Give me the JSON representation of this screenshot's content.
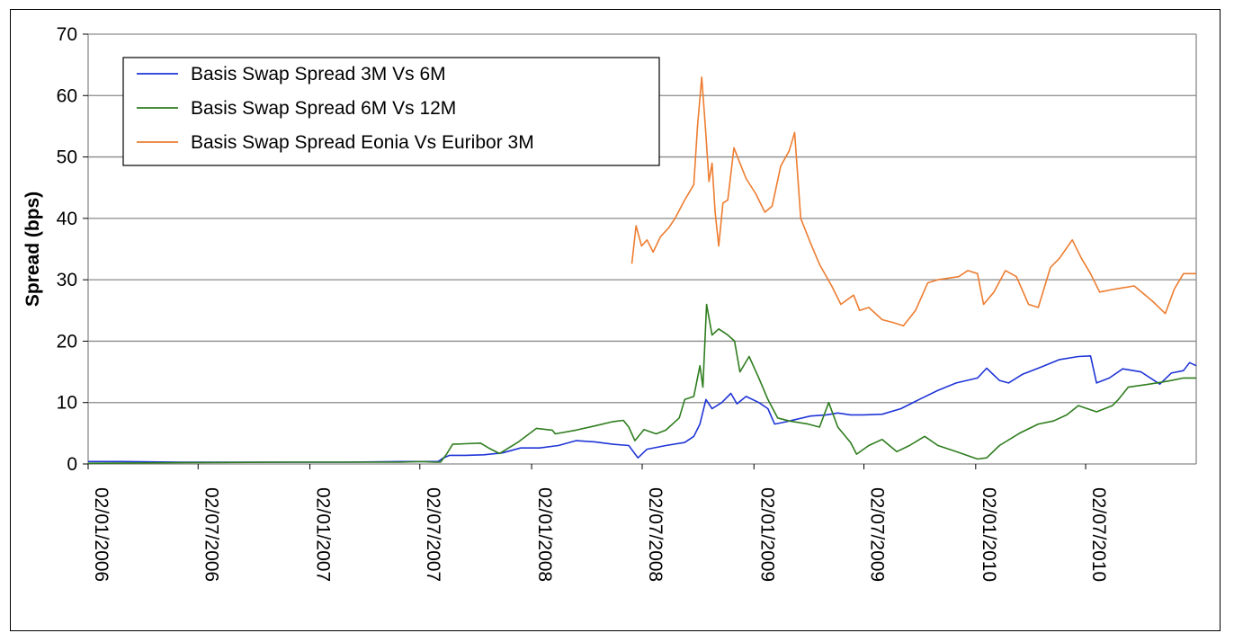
{
  "chart_data": {
    "type": "line",
    "title": "",
    "xlabel": "",
    "ylabel": "Spread (bps)",
    "ylim": [
      0,
      70
    ],
    "yticks": [
      0,
      10,
      20,
      30,
      40,
      50,
      60,
      70
    ],
    "xlim": [
      "2006-01-02",
      "2010-12-31"
    ],
    "xticks": [
      "02/01/2006",
      "02/07/2006",
      "02/01/2007",
      "02/07/2007",
      "02/01/2008",
      "02/07/2008",
      "02/01/2009",
      "02/07/2009",
      "02/01/2010",
      "02/07/2010"
    ],
    "grid": "horizontal",
    "legend_position": "top-left",
    "series": [
      {
        "name": "Basis Swap Spread 3M Vs 6M",
        "color": "#1f35d6",
        "points": [
          [
            "2006-01-02",
            0.4
          ],
          [
            "2006-03-01",
            0.4
          ],
          [
            "2006-06-01",
            0.3
          ],
          [
            "2006-09-01",
            0.3
          ],
          [
            "2006-12-01",
            0.3
          ],
          [
            "2007-03-01",
            0.3
          ],
          [
            "2007-06-01",
            0.4
          ],
          [
            "2007-08-01",
            0.4
          ],
          [
            "2007-08-10",
            1.0
          ],
          [
            "2007-08-20",
            1.4
          ],
          [
            "2007-09-15",
            1.4
          ],
          [
            "2007-10-15",
            1.5
          ],
          [
            "2007-11-15",
            1.8
          ],
          [
            "2007-12-15",
            2.6
          ],
          [
            "2008-01-15",
            2.6
          ],
          [
            "2008-02-15",
            3.0
          ],
          [
            "2008-03-15",
            3.8
          ],
          [
            "2008-04-15",
            3.6
          ],
          [
            "2008-05-15",
            3.2
          ],
          [
            "2008-06-10",
            3.0
          ],
          [
            "2008-06-25",
            1.0
          ],
          [
            "2008-07-10",
            2.4
          ],
          [
            "2008-08-10",
            3.0
          ],
          [
            "2008-09-10",
            3.5
          ],
          [
            "2008-09-25",
            4.5
          ],
          [
            "2008-10-05",
            6.5
          ],
          [
            "2008-10-15",
            10.5
          ],
          [
            "2008-10-25",
            9.0
          ],
          [
            "2008-11-10",
            10.0
          ],
          [
            "2008-11-25",
            11.5
          ],
          [
            "2008-12-05",
            9.8
          ],
          [
            "2008-12-20",
            11.0
          ],
          [
            "2009-01-10",
            10.0
          ],
          [
            "2009-01-25",
            9.0
          ],
          [
            "2009-02-05",
            6.5
          ],
          [
            "2009-02-20",
            6.8
          ],
          [
            "2009-03-10",
            7.2
          ],
          [
            "2009-04-05",
            7.8
          ],
          [
            "2009-05-01",
            8.0
          ],
          [
            "2009-05-20",
            8.3
          ],
          [
            "2009-06-10",
            8.0
          ],
          [
            "2009-07-01",
            8.0
          ],
          [
            "2009-08-01",
            8.1
          ],
          [
            "2009-09-01",
            9.0
          ],
          [
            "2009-10-01",
            10.5
          ],
          [
            "2009-11-01",
            12.0
          ],
          [
            "2009-12-01",
            13.2
          ],
          [
            "2010-01-05",
            14.0
          ],
          [
            "2010-01-20",
            15.6
          ],
          [
            "2010-02-10",
            13.6
          ],
          [
            "2010-02-25",
            13.2
          ],
          [
            "2010-03-20",
            14.6
          ],
          [
            "2010-04-20",
            15.8
          ],
          [
            "2010-05-20",
            17.0
          ],
          [
            "2010-06-20",
            17.5
          ],
          [
            "2010-07-10",
            17.6
          ],
          [
            "2010-07-20",
            13.2
          ],
          [
            "2010-08-10",
            14.0
          ],
          [
            "2010-09-01",
            15.5
          ],
          [
            "2010-10-01",
            15.0
          ],
          [
            "2010-11-01",
            13.0
          ],
          [
            "2010-11-20",
            14.8
          ],
          [
            "2010-12-10",
            15.2
          ],
          [
            "2010-12-20",
            16.5
          ],
          [
            "2010-12-31",
            16.0
          ]
        ]
      },
      {
        "name": "Basis Swap Spread 6M Vs 12M",
        "color": "#2e7d1e",
        "points": [
          [
            "2006-01-02",
            0.1
          ],
          [
            "2006-06-01",
            0.2
          ],
          [
            "2006-12-01",
            0.3
          ],
          [
            "2007-06-01",
            0.3
          ],
          [
            "2007-07-05",
            0.4
          ],
          [
            "2007-07-25",
            0.3
          ],
          [
            "2007-08-05",
            0.3
          ],
          [
            "2007-08-15",
            1.6
          ],
          [
            "2007-08-25",
            3.2
          ],
          [
            "2007-09-15",
            3.3
          ],
          [
            "2007-10-10",
            3.4
          ],
          [
            "2007-10-25",
            2.5
          ],
          [
            "2007-11-10",
            1.7
          ],
          [
            "2007-12-10",
            3.5
          ],
          [
            "2008-01-10",
            5.8
          ],
          [
            "2008-02-05",
            5.5
          ],
          [
            "2008-02-10",
            4.9
          ],
          [
            "2008-03-15",
            5.5
          ],
          [
            "2008-04-15",
            6.2
          ],
          [
            "2008-05-15",
            6.9
          ],
          [
            "2008-06-01",
            7.1
          ],
          [
            "2008-06-10",
            6.0
          ],
          [
            "2008-06-20",
            3.8
          ],
          [
            "2008-07-05",
            5.6
          ],
          [
            "2008-07-25",
            4.9
          ],
          [
            "2008-08-10",
            5.5
          ],
          [
            "2008-09-01",
            7.5
          ],
          [
            "2008-09-10",
            10.5
          ],
          [
            "2008-09-25",
            11.0
          ],
          [
            "2008-10-05",
            16.0
          ],
          [
            "2008-10-10",
            12.5
          ],
          [
            "2008-10-16",
            26.0
          ],
          [
            "2008-10-25",
            21.0
          ],
          [
            "2008-11-05",
            22.0
          ],
          [
            "2008-11-20",
            21.0
          ],
          [
            "2008-12-01",
            20.0
          ],
          [
            "2008-12-10",
            15.0
          ],
          [
            "2008-12-25",
            17.5
          ],
          [
            "2009-01-10",
            14.0
          ],
          [
            "2009-01-25",
            10.5
          ],
          [
            "2009-02-10",
            7.5
          ],
          [
            "2009-03-01",
            7.0
          ],
          [
            "2009-04-01",
            6.5
          ],
          [
            "2009-04-20",
            6.0
          ],
          [
            "2009-05-05",
            10.0
          ],
          [
            "2009-05-20",
            6.0
          ],
          [
            "2009-06-10",
            3.5
          ],
          [
            "2009-06-20",
            1.6
          ],
          [
            "2009-07-10",
            3.0
          ],
          [
            "2009-08-01",
            4.0
          ],
          [
            "2009-08-25",
            2.0
          ],
          [
            "2009-09-15",
            3.0
          ],
          [
            "2009-10-10",
            4.5
          ],
          [
            "2009-11-01",
            3.0
          ],
          [
            "2009-12-01",
            2.0
          ],
          [
            "2010-01-05",
            0.8
          ],
          [
            "2010-01-20",
            1.0
          ],
          [
            "2010-02-10",
            3.0
          ],
          [
            "2010-03-15",
            5.0
          ],
          [
            "2010-04-15",
            6.5
          ],
          [
            "2010-05-10",
            7.0
          ],
          [
            "2010-06-01",
            8.0
          ],
          [
            "2010-06-20",
            9.5
          ],
          [
            "2010-07-20",
            8.5
          ],
          [
            "2010-08-15",
            9.5
          ],
          [
            "2010-08-25",
            10.5
          ],
          [
            "2010-09-10",
            12.5
          ],
          [
            "2010-10-15",
            13.0
          ],
          [
            "2010-11-15",
            13.5
          ],
          [
            "2010-12-10",
            14.0
          ],
          [
            "2010-12-31",
            14.0
          ]
        ]
      },
      {
        "name": "Basis Swap Spread Eonia Vs Euribor 3M",
        "color": "#ed7d31",
        "points": [
          [
            "2008-06-15",
            32.6
          ],
          [
            "2008-06-22",
            38.8
          ],
          [
            "2008-07-01",
            35.5
          ],
          [
            "2008-07-10",
            36.5
          ],
          [
            "2008-07-20",
            34.5
          ],
          [
            "2008-08-01",
            37.0
          ],
          [
            "2008-08-15",
            38.5
          ],
          [
            "2008-08-25",
            40.0
          ],
          [
            "2008-09-10",
            43.0
          ],
          [
            "2008-09-25",
            45.5
          ],
          [
            "2008-10-01",
            55.0
          ],
          [
            "2008-10-08",
            63.0
          ],
          [
            "2008-10-14",
            55.0
          ],
          [
            "2008-10-20",
            46.0
          ],
          [
            "2008-10-25",
            49.0
          ],
          [
            "2008-10-30",
            41.0
          ],
          [
            "2008-11-05",
            35.5
          ],
          [
            "2008-11-12",
            42.5
          ],
          [
            "2008-11-20",
            43.0
          ],
          [
            "2008-11-30",
            51.5
          ],
          [
            "2008-12-10",
            49.0
          ],
          [
            "2008-12-20",
            46.5
          ],
          [
            "2009-01-05",
            44.0
          ],
          [
            "2009-01-20",
            41.0
          ],
          [
            "2009-02-01",
            42.0
          ],
          [
            "2009-02-15",
            48.5
          ],
          [
            "2009-03-01",
            51.0
          ],
          [
            "2009-03-10",
            54.0
          ],
          [
            "2009-03-20",
            40.0
          ],
          [
            "2009-04-05",
            36.0
          ],
          [
            "2009-04-20",
            32.5
          ],
          [
            "2009-05-10",
            29.0
          ],
          [
            "2009-05-25",
            26.0
          ],
          [
            "2009-06-15",
            27.5
          ],
          [
            "2009-06-25",
            25.0
          ],
          [
            "2009-07-10",
            25.5
          ],
          [
            "2009-08-01",
            23.5
          ],
          [
            "2009-08-20",
            23.0
          ],
          [
            "2009-09-05",
            22.5
          ],
          [
            "2009-09-25",
            25.0
          ],
          [
            "2009-10-15",
            29.5
          ],
          [
            "2009-11-01",
            30.0
          ],
          [
            "2009-12-05",
            30.5
          ],
          [
            "2009-12-20",
            31.5
          ],
          [
            "2010-01-05",
            31.0
          ],
          [
            "2010-01-15",
            26.0
          ],
          [
            "2010-02-01",
            28.0
          ],
          [
            "2010-02-20",
            31.5
          ],
          [
            "2010-03-10",
            30.5
          ],
          [
            "2010-03-30",
            26.0
          ],
          [
            "2010-04-15",
            25.5
          ],
          [
            "2010-05-05",
            32.0
          ],
          [
            "2010-05-20",
            33.5
          ],
          [
            "2010-06-10",
            36.5
          ],
          [
            "2010-06-25",
            33.5
          ],
          [
            "2010-07-10",
            31.0
          ],
          [
            "2010-07-25",
            28.0
          ],
          [
            "2010-08-20",
            28.5
          ],
          [
            "2010-09-20",
            29.0
          ],
          [
            "2010-10-20",
            26.5
          ],
          [
            "2010-11-10",
            24.5
          ],
          [
            "2010-11-25",
            28.5
          ],
          [
            "2010-12-10",
            31.0
          ],
          [
            "2010-12-31",
            31.0
          ]
        ]
      }
    ]
  }
}
